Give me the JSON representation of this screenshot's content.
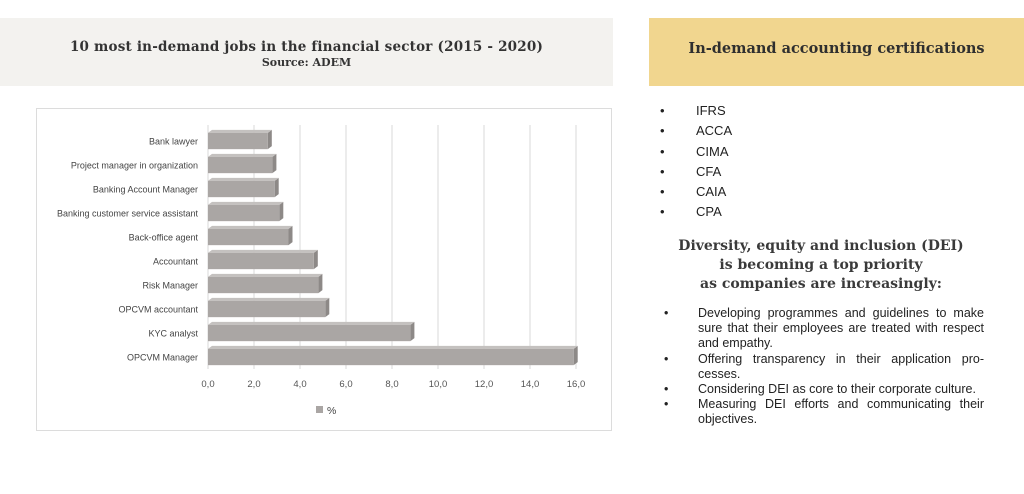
{
  "header": {
    "title": "10 most in-demand jobs in the financial sector (2015 - 2020)",
    "source": "Source: ADEM"
  },
  "chart_data": {
    "type": "bar",
    "orientation": "horizontal",
    "categories": [
      "Bank lawyer",
      "Project manager in organization",
      "Banking Account Manager",
      "Banking customer service assistant",
      "Back-office agent",
      "Accountant",
      "Risk Manager",
      "OPCVM accountant",
      "KYC analyst",
      "OPCVM Manager"
    ],
    "series": [
      {
        "name": "%",
        "values": [
          2.6,
          2.8,
          2.9,
          3.1,
          3.5,
          4.6,
          4.8,
          5.1,
          8.8,
          15.9
        ]
      }
    ],
    "x_ticks": [
      "0,0",
      "2,0",
      "4,0",
      "6,0",
      "8,0",
      "10,0",
      "12,0",
      "14,0",
      "16,0"
    ],
    "xlim": [
      0,
      16
    ],
    "grid": "vertical",
    "legend": "bottom",
    "bar_color": "#aaa6a4"
  },
  "certifications": {
    "title": "In-demand accounting certifications",
    "items": [
      "IFRS",
      "ACCA",
      "CIMA",
      "CFA",
      "CAIA",
      "CPA"
    ]
  },
  "dei": {
    "title_lines": [
      "Diversity, equity and inclusion (DEI)",
      "is becoming a top priority",
      "as companies are increasingly:"
    ],
    "items": [
      "Developing programmes and guidelines to make sure that their employees are treated with respect and empathy.",
      "Offering transparency in their application pro-cesses.",
      "Considering DEI as core to their corporate culture.",
      "Measuring DEI efforts and communicating their objectives."
    ]
  }
}
